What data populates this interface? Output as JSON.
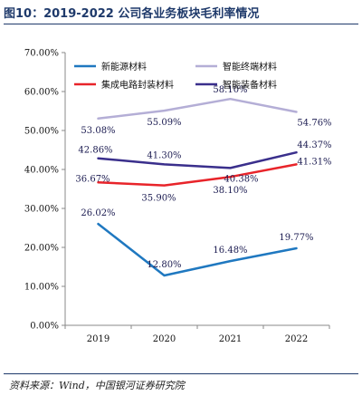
{
  "header": {
    "title": "图10：2019-2022 公司各业务板块毛利率情况"
  },
  "footer": {
    "source": "资料来源：Wind，中国银河证券研究院"
  },
  "chart_data": {
    "type": "line",
    "title": "",
    "xlabel": "",
    "ylabel": "",
    "x": [
      "2019",
      "2020",
      "2021",
      "2022"
    ],
    "ylim": [
      0,
      70
    ],
    "yticks": [
      "0.00%",
      "10.00%",
      "20.00%",
      "30.00%",
      "40.00%",
      "50.00%",
      "60.00%",
      "70.00%"
    ],
    "legend_position": "top",
    "series": [
      {
        "name": "新能源材料",
        "color": "#1f78c0",
        "values": [
          26.02,
          12.8,
          16.48,
          19.77
        ],
        "labels": [
          "26.02%",
          "12.80%",
          "16.48%",
          "19.77%"
        ]
      },
      {
        "name": "智能终端材料",
        "color": "#b4aed6",
        "values": [
          53.08,
          55.09,
          58.1,
          54.76
        ],
        "labels": [
          "53.08%",
          "55.09%",
          "58.10%",
          "54.76%"
        ]
      },
      {
        "name": "集成电路封装材料",
        "color": "#e8242a",
        "values": [
          36.67,
          35.9,
          38.1,
          41.31
        ],
        "labels": [
          "36.67%",
          "35.90%",
          "38.10%",
          "41.31%"
        ]
      },
      {
        "name": "智能装备材料",
        "color": "#3a2f8c",
        "values": [
          42.86,
          41.3,
          40.38,
          44.37
        ],
        "labels": [
          "42.86%",
          "41.30%",
          "40.38%",
          "44.37%"
        ]
      }
    ]
  }
}
